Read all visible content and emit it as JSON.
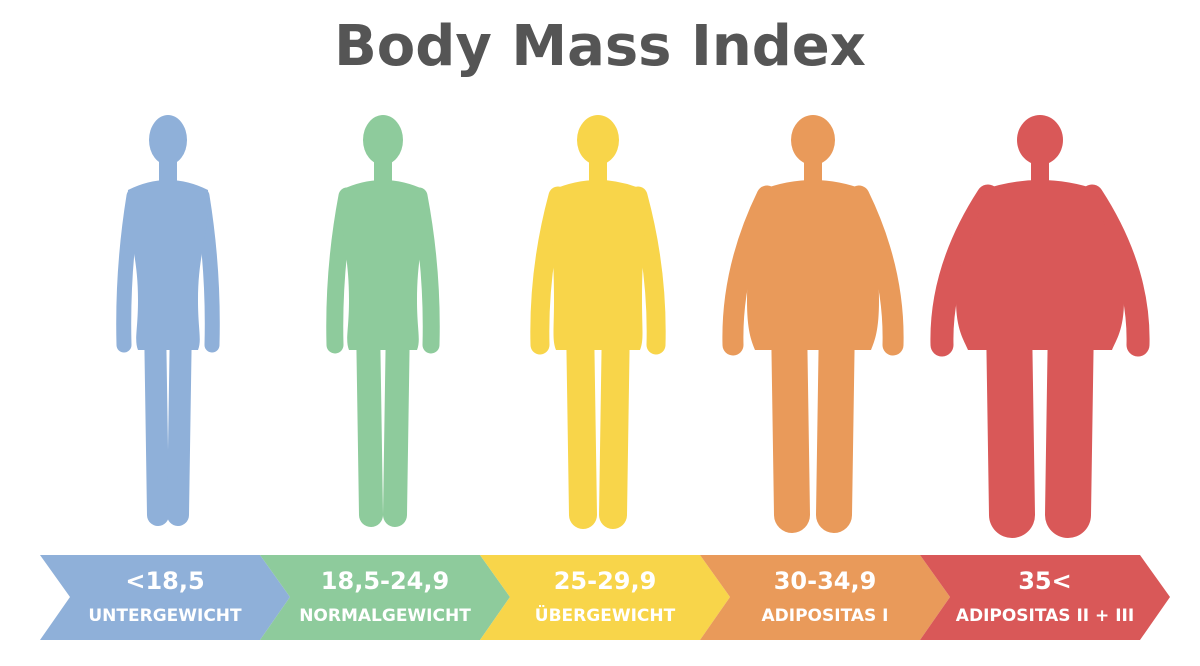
{
  "title": "Body Mass Index",
  "categories": [
    {
      "range": "<18,5",
      "label": "UNTERGEWICHT"
    },
    {
      "range": "18,5-24,9",
      "label": "NORMALGEWICHT"
    },
    {
      "range": "25-29,9",
      "label": "ÜBERGEWICHT"
    },
    {
      "range": "30-34,9",
      "label": "ADIPOSITAS I"
    },
    {
      "range": "35<",
      "label": "ADIPOSITAS II + III"
    }
  ]
}
